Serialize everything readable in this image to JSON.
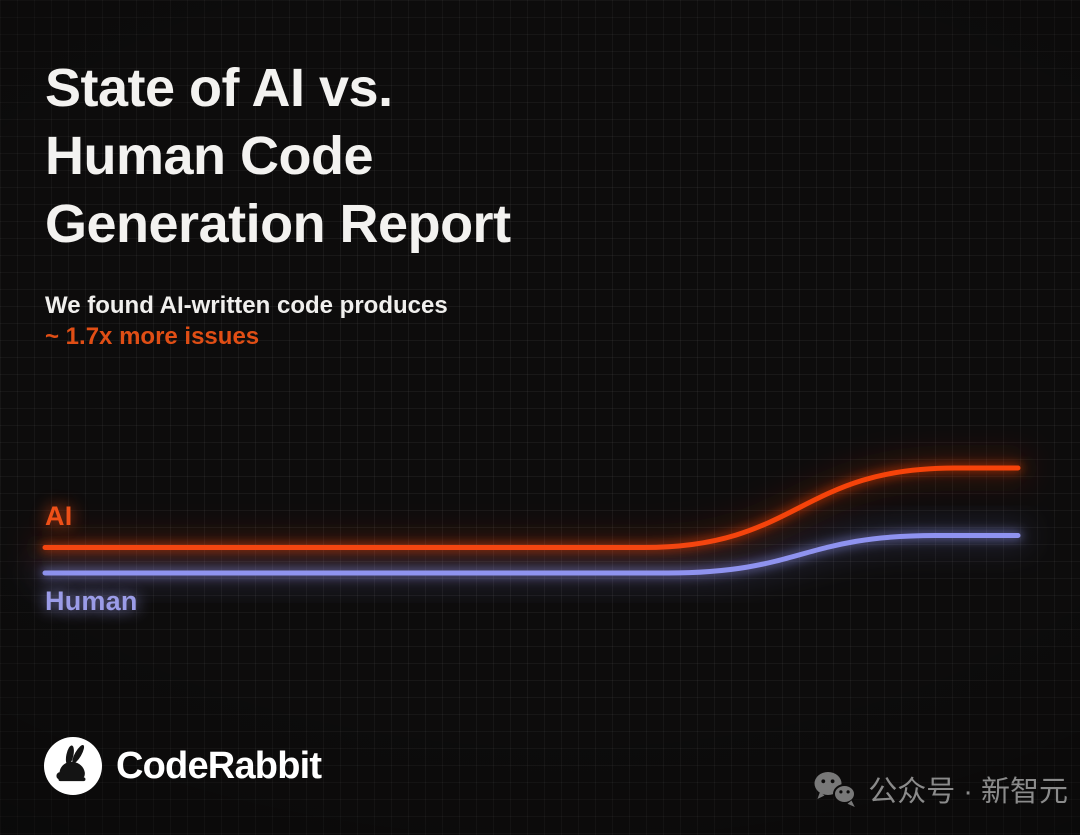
{
  "canvas": {
    "background": "#0D0C0C",
    "grid_color": "rgba(255,255,255,0.055)"
  },
  "header": {
    "title_lines": [
      "State of AI vs.",
      "Human Code",
      "Generation Report"
    ],
    "subtitle": "We found AI-written code produces",
    "subtitle_highlight": "~ 1.7x more issues",
    "highlight_color": "#E04E15"
  },
  "chart_data": {
    "type": "line",
    "grid": true,
    "x_range": [
      0,
      1
    ],
    "axes_visible": false,
    "legend_position": "labels-left-of-lines",
    "note": "Relative issue rate; AI line ends ~1.7x, both lines flat then S-curve rise near the right side",
    "series": [
      {
        "name": "AI",
        "line_color": "#F6430A",
        "label_color": "#EE5018",
        "start_value": 1.17,
        "end_value": 1.7,
        "flat_until": 0.615,
        "rise_end": 0.935,
        "points": [
          [
            0,
            1.17
          ],
          [
            0.3,
            1.17
          ],
          [
            0.615,
            1.18
          ],
          [
            0.7,
            1.27
          ],
          [
            0.776,
            1.42
          ],
          [
            0.86,
            1.6
          ],
          [
            0.935,
            1.7
          ],
          [
            1,
            1.7
          ]
        ]
      },
      {
        "name": "Human",
        "line_color": "#8F93F0",
        "label_color": "#9B9CE8",
        "start_value": 1.0,
        "end_value": 1.25,
        "flat_until": 0.64,
        "rise_end": 0.915,
        "points": [
          [
            0,
            1.0
          ],
          [
            0.3,
            1.0
          ],
          [
            0.64,
            1.01
          ],
          [
            0.72,
            1.06
          ],
          [
            0.8,
            1.13
          ],
          [
            0.88,
            1.22
          ],
          [
            0.915,
            1.25
          ],
          [
            1,
            1.25
          ]
        ]
      }
    ]
  },
  "footer": {
    "brand": "CodeRabbit"
  },
  "watermark": {
    "label": "公众号 · 新智元"
  }
}
